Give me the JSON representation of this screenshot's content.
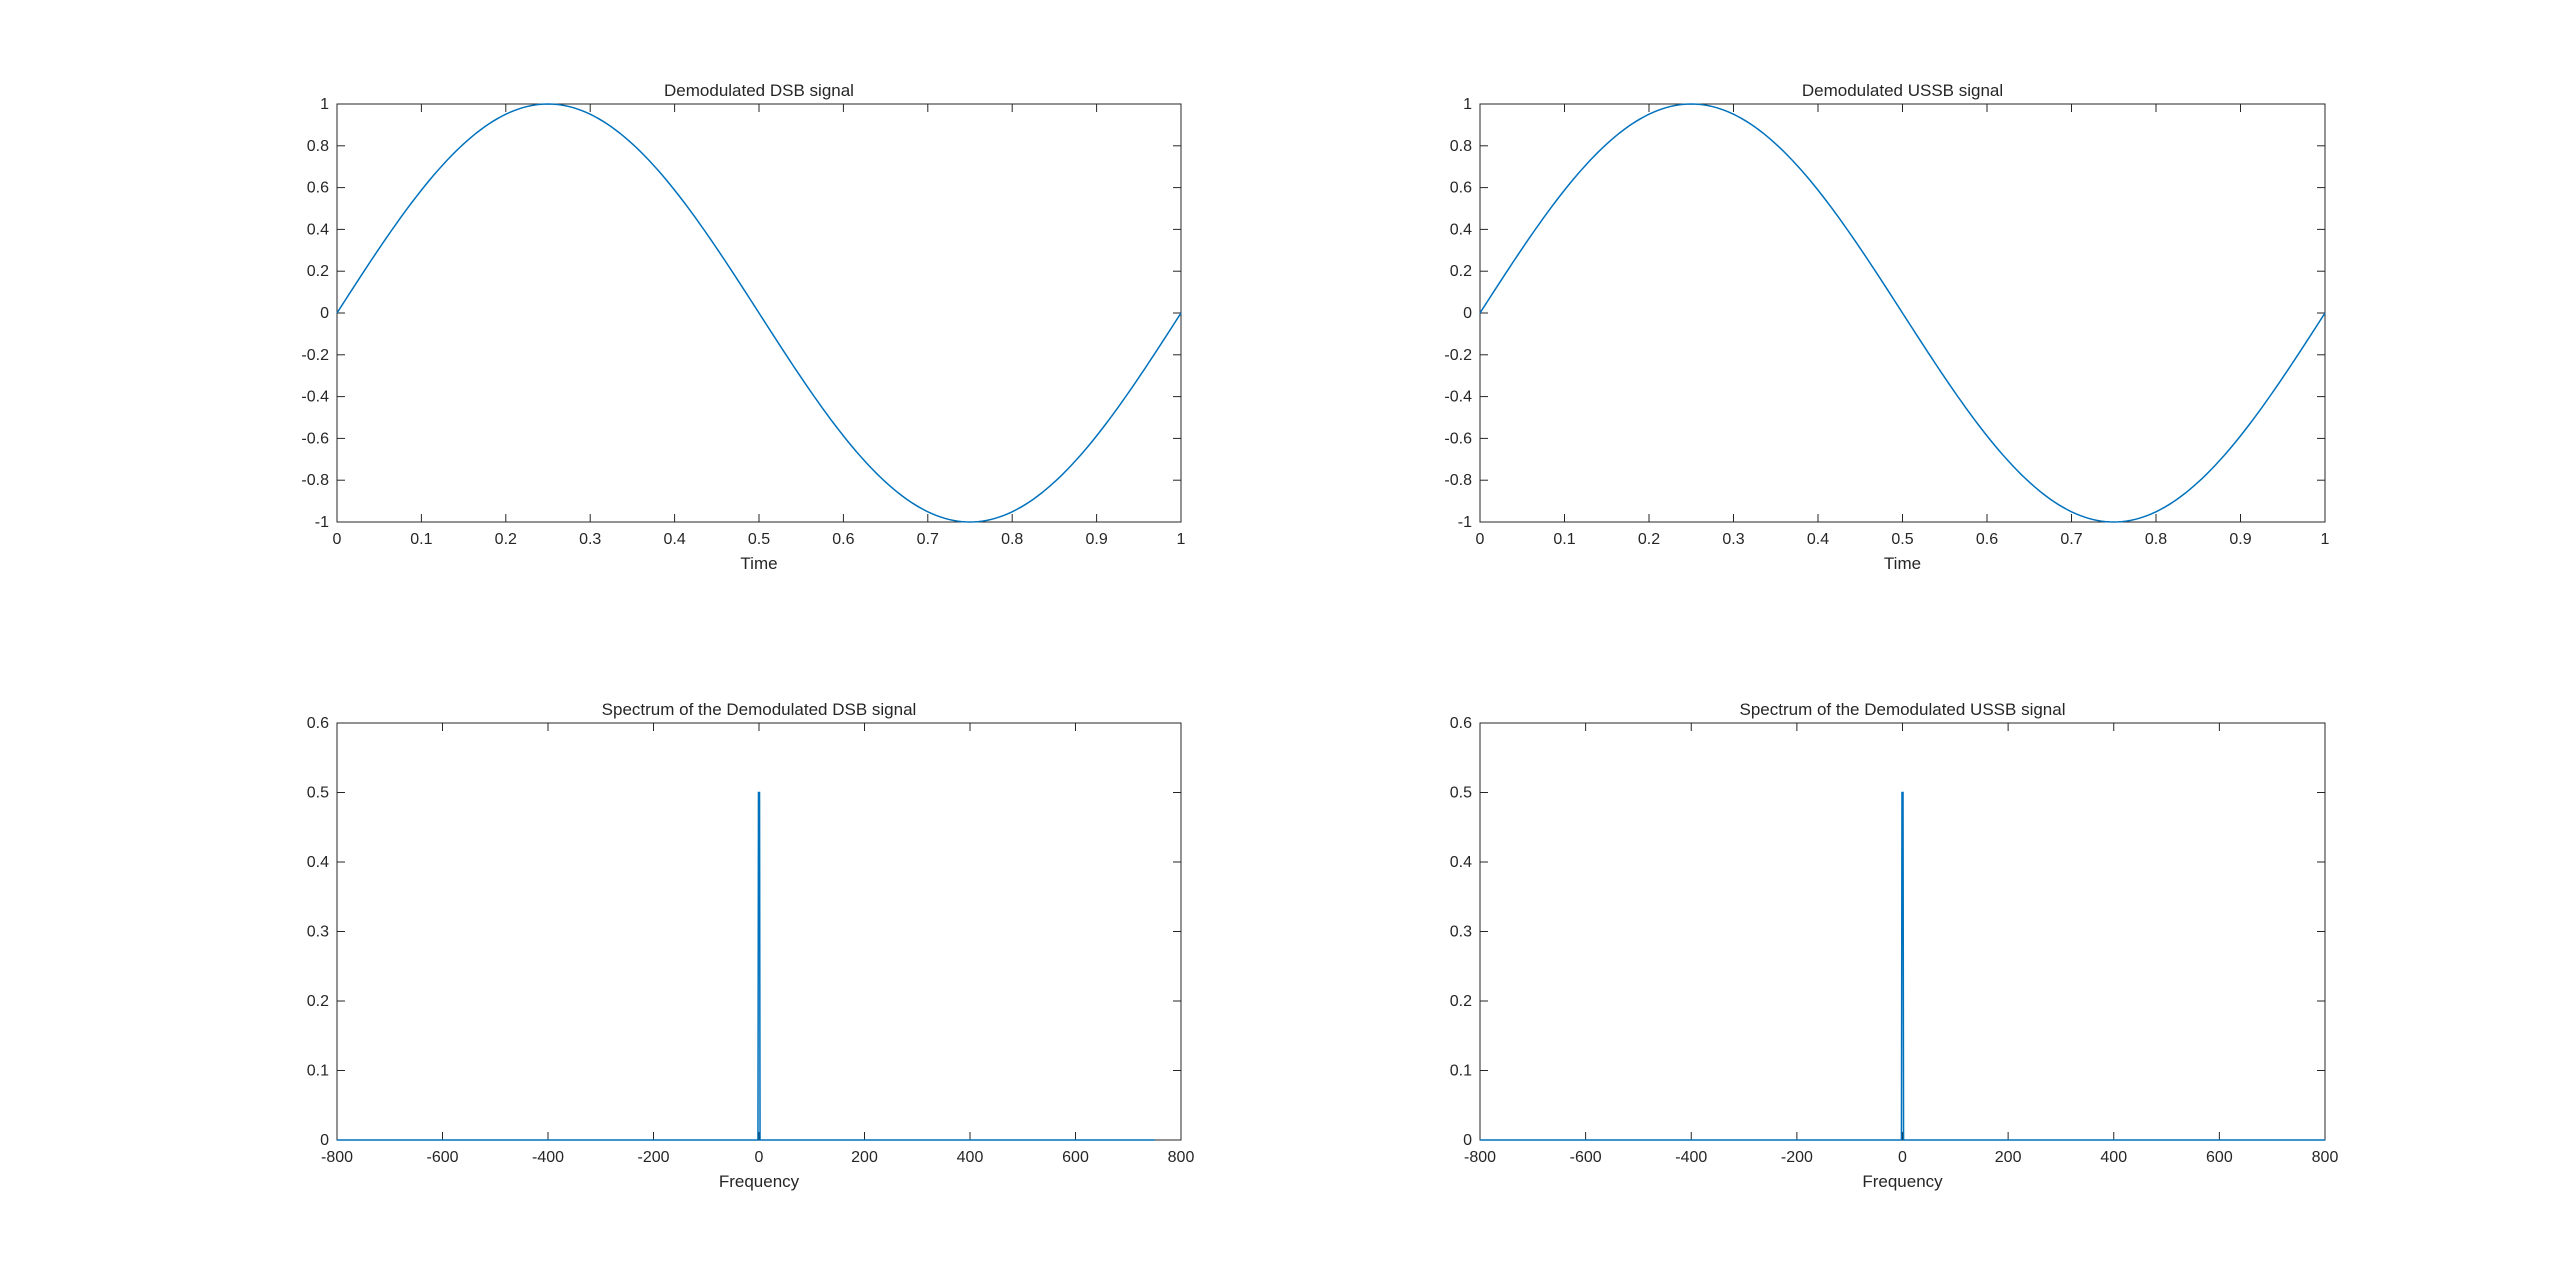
{
  "figure": {
    "background": "#ffffff",
    "line_color": "#0072BD",
    "axis_color": "#262626"
  },
  "chart_data": [
    {
      "type": "line",
      "title": "Demodulated DSB signal",
      "xlabel": "Time",
      "ylabel": "",
      "xlim": [
        0,
        1
      ],
      "ylim": [
        -1,
        1
      ],
      "xticks": [
        0,
        0.1,
        0.2,
        0.3,
        0.4,
        0.5,
        0.6,
        0.7,
        0.8,
        0.9,
        1
      ],
      "xtick_labels": [
        "0",
        "0.1",
        "0.2",
        "0.3",
        "0.4",
        "0.5",
        "0.6",
        "0.7",
        "0.8",
        "0.9",
        "1"
      ],
      "yticks": [
        -1,
        -0.8,
        -0.6,
        -0.4,
        -0.2,
        0,
        0.2,
        0.4,
        0.6,
        0.8,
        1
      ],
      "ytick_labels": [
        "-1",
        "-0.8",
        "-0.6",
        "-0.4",
        "-0.2",
        "0",
        "0.2",
        "0.4",
        "0.6",
        "0.8",
        "1"
      ],
      "grid": false,
      "series": [
        {
          "x": [
            0,
            0.05,
            0.1,
            0.15,
            0.2,
            0.25,
            0.3,
            0.35,
            0.4,
            0.45,
            0.5,
            0.55,
            0.6,
            0.65,
            0.7,
            0.75,
            0.8,
            0.85,
            0.9,
            0.95,
            1
          ],
          "y": [
            0,
            0.309,
            0.588,
            0.809,
            0.951,
            1,
            0.951,
            0.809,
            0.588,
            0.309,
            0,
            -0.309,
            -0.588,
            -0.809,
            -0.951,
            -1,
            -0.951,
            -0.809,
            -0.588,
            -0.309,
            0
          ]
        }
      ]
    },
    {
      "type": "line",
      "title": "Demodulated USSB signal",
      "xlabel": "Time",
      "ylabel": "",
      "xlim": [
        0,
        1
      ],
      "ylim": [
        -1,
        1
      ],
      "xticks": [
        0,
        0.1,
        0.2,
        0.3,
        0.4,
        0.5,
        0.6,
        0.7,
        0.8,
        0.9,
        1
      ],
      "xtick_labels": [
        "0",
        "0.1",
        "0.2",
        "0.3",
        "0.4",
        "0.5",
        "0.6",
        "0.7",
        "0.8",
        "0.9",
        "1"
      ],
      "yticks": [
        -1,
        -0.8,
        -0.6,
        -0.4,
        -0.2,
        0,
        0.2,
        0.4,
        0.6,
        0.8,
        1
      ],
      "ytick_labels": [
        "-1",
        "-0.8",
        "-0.6",
        "-0.4",
        "-0.2",
        "0",
        "0.2",
        "0.4",
        "0.6",
        "0.8",
        "1"
      ],
      "grid": false,
      "series": [
        {
          "x": [
            0,
            0.05,
            0.1,
            0.15,
            0.2,
            0.25,
            0.3,
            0.35,
            0.4,
            0.45,
            0.5,
            0.55,
            0.6,
            0.65,
            0.7,
            0.75,
            0.8,
            0.85,
            0.9,
            0.95,
            1
          ],
          "y": [
            0,
            0.309,
            0.588,
            0.809,
            0.951,
            1,
            0.951,
            0.809,
            0.588,
            0.309,
            0,
            -0.309,
            -0.588,
            -0.809,
            -0.951,
            -1,
            -0.951,
            -0.809,
            -0.588,
            -0.309,
            0
          ]
        }
      ]
    },
    {
      "type": "line",
      "title": "Spectrum of the Demodulated DSB signal",
      "xlabel": "Frequency",
      "ylabel": "",
      "xlim": [
        -800,
        800
      ],
      "ylim": [
        0,
        0.6
      ],
      "xticks": [
        -800,
        -600,
        -400,
        -200,
        0,
        200,
        400,
        600,
        800
      ],
      "xtick_labels": [
        "-800",
        "-600",
        "-400",
        "-200",
        "0",
        "200",
        "400",
        "600",
        "800"
      ],
      "yticks": [
        0,
        0.1,
        0.2,
        0.3,
        0.4,
        0.5,
        0.6
      ],
      "ytick_labels": [
        "0",
        "0.1",
        "0.2",
        "0.3",
        "0.4",
        "0.5",
        "0.6"
      ],
      "grid": false,
      "series": [
        {
          "x": [
            -800,
            -2,
            -1,
            1,
            2,
            750
          ],
          "y": [
            0,
            0,
            0.5,
            0.5,
            0,
            0
          ]
        }
      ]
    },
    {
      "type": "line",
      "title": "Spectrum of the Demodulated USSB signal",
      "xlabel": "Frequency",
      "ylabel": "",
      "xlim": [
        -800,
        800
      ],
      "ylim": [
        0,
        0.6
      ],
      "xticks": [
        -800,
        -600,
        -400,
        -200,
        0,
        200,
        400,
        600,
        800
      ],
      "xtick_labels": [
        "-800",
        "-600",
        "-400",
        "-200",
        "0",
        "200",
        "400",
        "600",
        "800"
      ],
      "yticks": [
        0,
        0.1,
        0.2,
        0.3,
        0.4,
        0.5,
        0.6
      ],
      "ytick_labels": [
        "0",
        "0.1",
        "0.2",
        "0.3",
        "0.4",
        "0.5",
        "0.6"
      ],
      "grid": false,
      "series": [
        {
          "x": [
            -800,
            -2,
            -1,
            1,
            2,
            800
          ],
          "y": [
            0,
            0,
            0.5,
            0.5,
            0,
            0
          ]
        }
      ]
    }
  ]
}
